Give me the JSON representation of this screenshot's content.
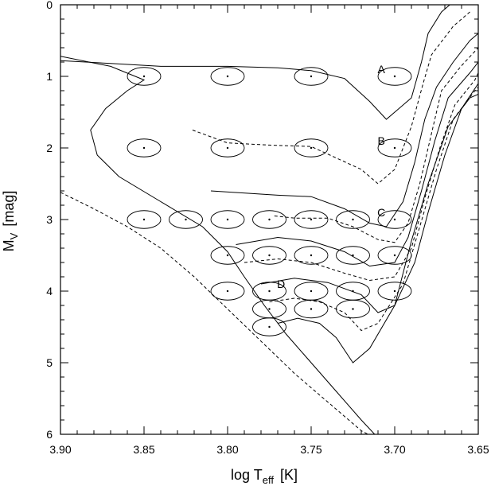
{
  "chart_data": {
    "type": "scatter",
    "xlabel": {
      "main": "log T",
      "sub": "eff",
      "unit": "[K]"
    },
    "ylabel": {
      "main": "M",
      "sub": "V",
      "unit": "[mag]"
    },
    "xlim": [
      3.9,
      3.65
    ],
    "ylim": [
      6,
      0
    ],
    "x_inverted": true,
    "y_inverted": true,
    "grid": false,
    "x_ticks": [
      "3.90",
      "3.85",
      "3.80",
      "3.75",
      "3.70",
      "3.65"
    ],
    "y_ticks": [
      "0",
      "1",
      "2",
      "3",
      "4",
      "5",
      "6"
    ],
    "points": [
      {
        "x": 3.85,
        "y": 1.0
      },
      {
        "x": 3.8,
        "y": 1.0
      },
      {
        "x": 3.75,
        "y": 1.0
      },
      {
        "x": 3.7,
        "y": 1.0
      },
      {
        "x": 3.85,
        "y": 2.0
      },
      {
        "x": 3.8,
        "y": 2.0
      },
      {
        "x": 3.75,
        "y": 2.0
      },
      {
        "x": 3.7,
        "y": 2.0
      },
      {
        "x": 3.85,
        "y": 3.0
      },
      {
        "x": 3.825,
        "y": 3.0
      },
      {
        "x": 3.8,
        "y": 3.0
      },
      {
        "x": 3.775,
        "y": 3.0
      },
      {
        "x": 3.75,
        "y": 3.0
      },
      {
        "x": 3.725,
        "y": 3.0
      },
      {
        "x": 3.7,
        "y": 3.0
      },
      {
        "x": 3.8,
        "y": 3.5
      },
      {
        "x": 3.775,
        "y": 3.5
      },
      {
        "x": 3.75,
        "y": 3.5
      },
      {
        "x": 3.725,
        "y": 3.5
      },
      {
        "x": 3.7,
        "y": 3.5
      },
      {
        "x": 3.8,
        "y": 4.0
      },
      {
        "x": 3.775,
        "y": 4.0
      },
      {
        "x": 3.75,
        "y": 4.0
      },
      {
        "x": 3.725,
        "y": 4.0
      },
      {
        "x": 3.7,
        "y": 4.0
      },
      {
        "x": 3.775,
        "y": 4.25
      },
      {
        "x": 3.75,
        "y": 4.25
      },
      {
        "x": 3.725,
        "y": 4.25
      },
      {
        "x": 3.775,
        "y": 4.5
      }
    ],
    "error_ellipse": {
      "dx": 0.01,
      "dy": 0.125
    },
    "labels": [
      {
        "text": "A",
        "x": 3.708,
        "y": 0.9
      },
      {
        "text": "B",
        "x": 3.708,
        "y": 1.9
      },
      {
        "text": "C",
        "x": 3.708,
        "y": 2.9
      },
      {
        "text": "D",
        "x": 3.768,
        "y": 3.9
      }
    ],
    "curves": [
      {
        "style": "solid",
        "points": [
          [
            3.9,
            0.78
          ],
          [
            3.87,
            0.82
          ],
          [
            3.84,
            0.86
          ],
          [
            3.8,
            0.86
          ],
          [
            3.77,
            0.88
          ],
          [
            3.75,
            0.92
          ],
          [
            3.73,
            1.03
          ],
          [
            3.715,
            1.35
          ],
          [
            3.705,
            1.6
          ],
          [
            3.69,
            1.3
          ],
          [
            3.684,
            0.8
          ],
          [
            3.68,
            0.4
          ],
          [
            3.672,
            0.1
          ],
          [
            3.667,
            0.0
          ]
        ]
      },
      {
        "style": "solid",
        "points": [
          [
            3.9,
            0.72
          ],
          [
            3.87,
            0.86
          ],
          [
            3.85,
            1.05
          ],
          [
            3.86,
            1.2
          ],
          [
            3.873,
            1.45
          ],
          [
            3.882,
            1.75
          ],
          [
            3.878,
            2.1
          ],
          [
            3.865,
            2.4
          ],
          [
            3.84,
            2.75
          ],
          [
            3.815,
            3.1
          ],
          [
            3.8,
            3.45
          ],
          [
            3.79,
            3.8
          ],
          [
            3.778,
            4.2
          ],
          [
            3.765,
            4.6
          ],
          [
            3.75,
            5.0
          ],
          [
            3.735,
            5.4
          ],
          [
            3.72,
            5.8
          ],
          [
            3.712,
            6.0
          ]
        ]
      },
      {
        "style": "dashed",
        "points": [
          [
            3.9,
            2.62
          ],
          [
            3.88,
            2.85
          ],
          [
            3.86,
            3.1
          ],
          [
            3.84,
            3.4
          ],
          [
            3.82,
            3.8
          ],
          [
            3.8,
            4.25
          ],
          [
            3.78,
            4.7
          ],
          [
            3.76,
            5.15
          ],
          [
            3.74,
            5.55
          ],
          [
            3.72,
            5.95
          ],
          [
            3.716,
            6.0
          ]
        ]
      },
      {
        "style": "dashed",
        "points": [
          [
            3.821,
            1.75
          ],
          [
            3.8,
            1.93
          ],
          [
            3.775,
            1.96
          ],
          [
            3.75,
            1.98
          ],
          [
            3.72,
            2.3
          ],
          [
            3.71,
            2.5
          ],
          [
            3.7,
            2.3
          ],
          [
            3.69,
            1.7
          ],
          [
            3.683,
            1.1
          ],
          [
            3.678,
            0.7
          ],
          [
            3.665,
            0.3
          ],
          [
            3.655,
            0.1
          ]
        ]
      },
      {
        "style": "solid",
        "points": [
          [
            3.81,
            2.6
          ],
          [
            3.77,
            2.66
          ],
          [
            3.75,
            2.68
          ],
          [
            3.73,
            2.85
          ],
          [
            3.715,
            3.05
          ],
          [
            3.705,
            3.1
          ],
          [
            3.695,
            2.75
          ],
          [
            3.688,
            2.2
          ],
          [
            3.682,
            1.6
          ],
          [
            3.675,
            1.15
          ],
          [
            3.665,
            0.8
          ],
          [
            3.655,
            0.5
          ],
          [
            3.65,
            0.4
          ]
        ]
      },
      {
        "style": "dashed",
        "points": [
          [
            3.772,
            2.95
          ],
          [
            3.76,
            2.98
          ],
          [
            3.74,
            2.98
          ],
          [
            3.725,
            3.1
          ],
          [
            3.71,
            3.28
          ],
          [
            3.7,
            3.32
          ],
          [
            3.692,
            3.05
          ],
          [
            3.685,
            2.5
          ],
          [
            3.678,
            1.8
          ],
          [
            3.672,
            1.2
          ],
          [
            3.66,
            0.85
          ],
          [
            3.65,
            0.6
          ]
        ]
      },
      {
        "style": "solid",
        "points": [
          [
            3.795,
            3.35
          ],
          [
            3.77,
            3.25
          ],
          [
            3.75,
            3.3
          ],
          [
            3.73,
            3.45
          ],
          [
            3.715,
            3.65
          ],
          [
            3.7,
            3.6
          ],
          [
            3.692,
            3.25
          ],
          [
            3.684,
            2.6
          ],
          [
            3.676,
            1.9
          ],
          [
            3.668,
            1.3
          ],
          [
            3.655,
            0.95
          ],
          [
            3.65,
            0.8
          ]
        ]
      },
      {
        "style": "dashed",
        "points": [
          [
            3.79,
            3.6
          ],
          [
            3.77,
            3.55
          ],
          [
            3.75,
            3.6
          ],
          [
            3.73,
            3.75
          ],
          [
            3.715,
            3.85
          ],
          [
            3.7,
            3.8
          ],
          [
            3.69,
            3.4
          ],
          [
            3.682,
            2.7
          ],
          [
            3.673,
            2.0
          ],
          [
            3.664,
            1.4
          ],
          [
            3.652,
            1.05
          ],
          [
            3.65,
            0.95
          ]
        ]
      },
      {
        "style": "solid",
        "points": [
          [
            3.78,
            3.9
          ],
          [
            3.76,
            3.82
          ],
          [
            3.74,
            3.88
          ],
          [
            3.72,
            4.05
          ],
          [
            3.71,
            4.3
          ],
          [
            3.7,
            4.2
          ],
          [
            3.688,
            3.6
          ],
          [
            3.68,
            2.9
          ],
          [
            3.67,
            2.1
          ],
          [
            3.66,
            1.45
          ],
          [
            3.65,
            1.1
          ]
        ]
      },
      {
        "style": "dashed",
        "points": [
          [
            3.775,
            4.15
          ],
          [
            3.76,
            4.1
          ],
          [
            3.745,
            4.15
          ],
          [
            3.73,
            4.3
          ],
          [
            3.72,
            4.55
          ],
          [
            3.71,
            4.45
          ],
          [
            3.695,
            3.9
          ],
          [
            3.685,
            3.1
          ],
          [
            3.675,
            2.3
          ],
          [
            3.665,
            1.6
          ],
          [
            3.652,
            1.2
          ],
          [
            3.65,
            1.15
          ]
        ]
      },
      {
        "style": "solid",
        "points": [
          [
            3.77,
            4.45
          ],
          [
            3.758,
            4.38
          ],
          [
            3.745,
            4.45
          ],
          [
            3.735,
            4.65
          ],
          [
            3.725,
            5.0
          ],
          [
            3.715,
            4.8
          ],
          [
            3.7,
            4.2
          ],
          [
            3.69,
            3.3
          ],
          [
            3.68,
            2.5
          ],
          [
            3.668,
            1.7
          ],
          [
            3.655,
            1.3
          ],
          [
            3.65,
            1.25
          ]
        ]
      }
    ]
  }
}
